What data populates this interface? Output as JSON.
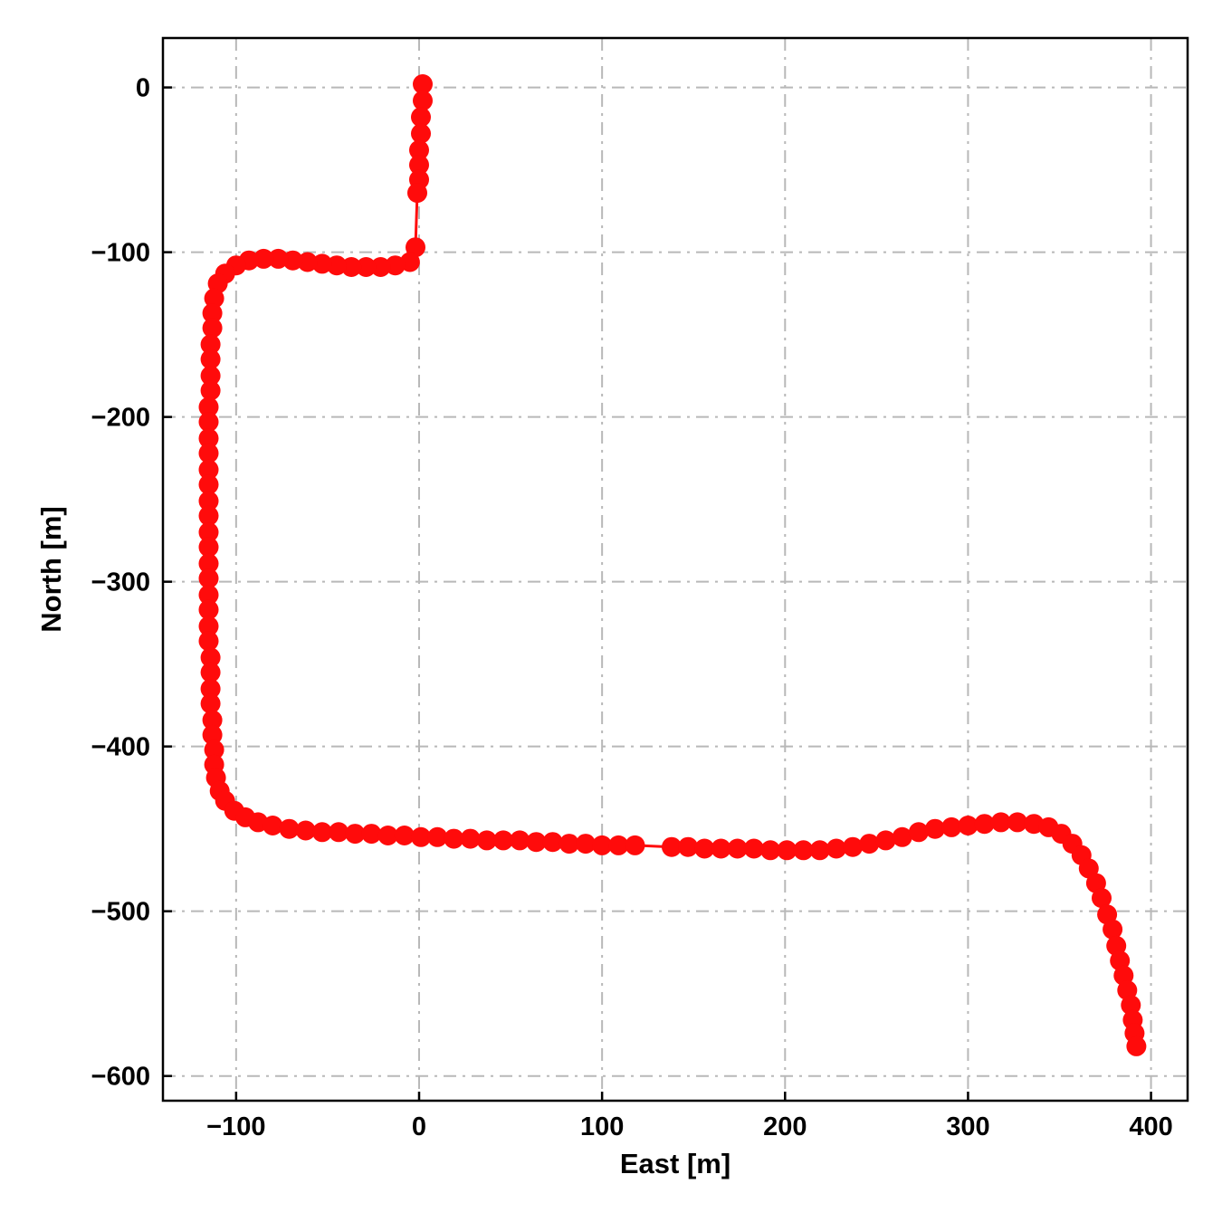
{
  "chart_data": {
    "type": "scatter",
    "title": "",
    "xlabel": "East [m]",
    "ylabel": "North [m]",
    "xlim": [
      -140,
      420
    ],
    "ylim": [
      -615,
      30
    ],
    "xticks": [
      -100,
      0,
      100,
      200,
      300,
      400
    ],
    "yticks": [
      0,
      -100,
      -200,
      -300,
      -400,
      -500,
      -600
    ],
    "grid": true,
    "grid_style": "dash-dot",
    "grid_color": "#b8b8b8",
    "spine_color": "#000000",
    "line_color": "#ff0b0b",
    "marker_color": "#ff0b0b",
    "marker_radius": 11,
    "line_width": 3,
    "points": [
      [
        2,
        2
      ],
      [
        2,
        -8
      ],
      [
        1,
        -18
      ],
      [
        1,
        -28
      ],
      [
        0,
        -38
      ],
      [
        0,
        -47
      ],
      [
        0,
        -56
      ],
      [
        -1,
        -64
      ],
      [
        -2,
        -97
      ],
      [
        -5,
        -106
      ],
      [
        -13,
        -108
      ],
      [
        -21,
        -109
      ],
      [
        -29,
        -109
      ],
      [
        -37,
        -109
      ],
      [
        -45,
        -108
      ],
      [
        -53,
        -107
      ],
      [
        -61,
        -106
      ],
      [
        -69,
        -105
      ],
      [
        -77,
        -104
      ],
      [
        -85,
        -104
      ],
      [
        -93,
        -105
      ],
      [
        -100,
        -108
      ],
      [
        -106,
        -113
      ],
      [
        -110,
        -119
      ],
      [
        -112,
        -128
      ],
      [
        -113,
        -137
      ],
      [
        -113,
        -146
      ],
      [
        -114,
        -156
      ],
      [
        -114,
        -165
      ],
      [
        -114,
        -175
      ],
      [
        -114,
        -184
      ],
      [
        -115,
        -194
      ],
      [
        -115,
        -203
      ],
      [
        -115,
        -213
      ],
      [
        -115,
        -222
      ],
      [
        -115,
        -232
      ],
      [
        -115,
        -241
      ],
      [
        -115,
        -251
      ],
      [
        -115,
        -260
      ],
      [
        -115,
        -270
      ],
      [
        -115,
        -279
      ],
      [
        -115,
        -289
      ],
      [
        -115,
        -298
      ],
      [
        -115,
        -308
      ],
      [
        -115,
        -317
      ],
      [
        -115,
        -327
      ],
      [
        -115,
        -336
      ],
      [
        -114,
        -346
      ],
      [
        -114,
        -355
      ],
      [
        -114,
        -365
      ],
      [
        -114,
        -374
      ],
      [
        -113,
        -384
      ],
      [
        -113,
        -393
      ],
      [
        -112,
        -402
      ],
      [
        -112,
        -411
      ],
      [
        -111,
        -419
      ],
      [
        -109,
        -427
      ],
      [
        -106,
        -433
      ],
      [
        -101,
        -439
      ],
      [
        -95,
        -443
      ],
      [
        -88,
        -446
      ],
      [
        -80,
        -448
      ],
      [
        -71,
        -450
      ],
      [
        -62,
        -451
      ],
      [
        -53,
        -452
      ],
      [
        -44,
        -452
      ],
      [
        -35,
        -453
      ],
      [
        -26,
        -453
      ],
      [
        -17,
        -454
      ],
      [
        -8,
        -454
      ],
      [
        1,
        -455
      ],
      [
        10,
        -455
      ],
      [
        19,
        -456
      ],
      [
        28,
        -456
      ],
      [
        37,
        -457
      ],
      [
        46,
        -457
      ],
      [
        55,
        -457
      ],
      [
        64,
        -458
      ],
      [
        73,
        -458
      ],
      [
        82,
        -459
      ],
      [
        91,
        -459
      ],
      [
        100,
        -460
      ],
      [
        109,
        -460
      ],
      [
        118,
        -460
      ],
      [
        138,
        -461
      ],
      [
        147,
        -461
      ],
      [
        156,
        -462
      ],
      [
        165,
        -462
      ],
      [
        174,
        -462
      ],
      [
        183,
        -462
      ],
      [
        192,
        -463
      ],
      [
        201,
        -463
      ],
      [
        210,
        -463
      ],
      [
        219,
        -463
      ],
      [
        228,
        -462
      ],
      [
        237,
        -461
      ],
      [
        246,
        -459
      ],
      [
        255,
        -457
      ],
      [
        264,
        -455
      ],
      [
        273,
        -452
      ],
      [
        282,
        -450
      ],
      [
        291,
        -449
      ],
      [
        300,
        -448
      ],
      [
        309,
        -447
      ],
      [
        318,
        -446
      ],
      [
        327,
        -446
      ],
      [
        336,
        -447
      ],
      [
        344,
        -449
      ],
      [
        351,
        -453
      ],
      [
        357,
        -459
      ],
      [
        362,
        -466
      ],
      [
        366,
        -474
      ],
      [
        370,
        -483
      ],
      [
        373,
        -492
      ],
      [
        376,
        -502
      ],
      [
        379,
        -511
      ],
      [
        381,
        -521
      ],
      [
        383,
        -530
      ],
      [
        385,
        -539
      ],
      [
        387,
        -548
      ],
      [
        389,
        -557
      ],
      [
        390,
        -566
      ],
      [
        391,
        -574
      ],
      [
        392,
        -582
      ]
    ]
  }
}
